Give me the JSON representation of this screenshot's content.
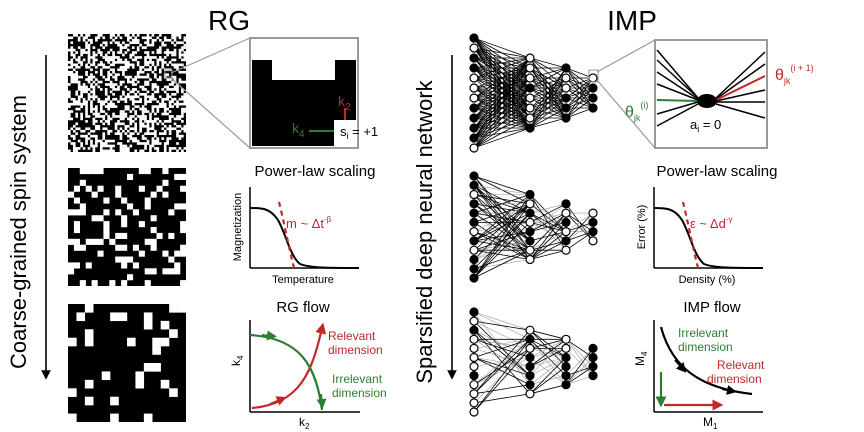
{
  "left": {
    "title": "RG",
    "side_label": "Coarse-grained spin system",
    "zoom": {
      "k2_label": "k",
      "k2_sub": "2",
      "k4_label": "k",
      "k4_sub": "4",
      "spin_label": "s",
      "spin_sub": "i",
      "spin_value": " = +1"
    },
    "scaling": {
      "title": "Power-law scaling",
      "ylabel": "Magnetization",
      "xlabel": "Temperature",
      "law": "m ~ Δt",
      "law_exp": "-β"
    },
    "flow": {
      "title": "RG flow",
      "ylabel_main": "k",
      "ylabel_sub": "4",
      "xlabel_main": "k",
      "xlabel_sub": "2",
      "relevant_1": "Relevant",
      "relevant_2": "dimension",
      "irrelevant_1": "Irrelevant",
      "irrelevant_2": "dimension"
    }
  },
  "right": {
    "title": "IMP",
    "side_label": "Sparsified deep neural network",
    "zoom": {
      "theta_in": "θ",
      "theta_in_sub": "jk",
      "theta_in_sup": "(i)",
      "theta_out": "θ",
      "theta_out_sub": "jk",
      "theta_out_sup": "(i + 1)",
      "node_label": "a",
      "node_sub": "i",
      "node_value": " = 0"
    },
    "scaling": {
      "title": "Power-law scaling",
      "ylabel": "Error (%)",
      "xlabel": "Density (%)",
      "law": "ε ~ Δd",
      "law_exp": "-γ"
    },
    "flow": {
      "title": "IMP flow",
      "ylabel_main": "M",
      "ylabel_sub": "4",
      "xlabel_main": "M",
      "xlabel_sub": "1",
      "irrelevant_1": "Irrelevant",
      "irrelevant_2": "dimension",
      "relevant_1": "Relevant",
      "relevant_2": "dimension"
    }
  },
  "colors": {
    "red": "#c0282a",
    "green": "#2e7d32",
    "gray": "#9a9a9a",
    "black": "#000000"
  },
  "icons": [
    "spin-lattice",
    "neural-network",
    "down-arrow"
  ]
}
